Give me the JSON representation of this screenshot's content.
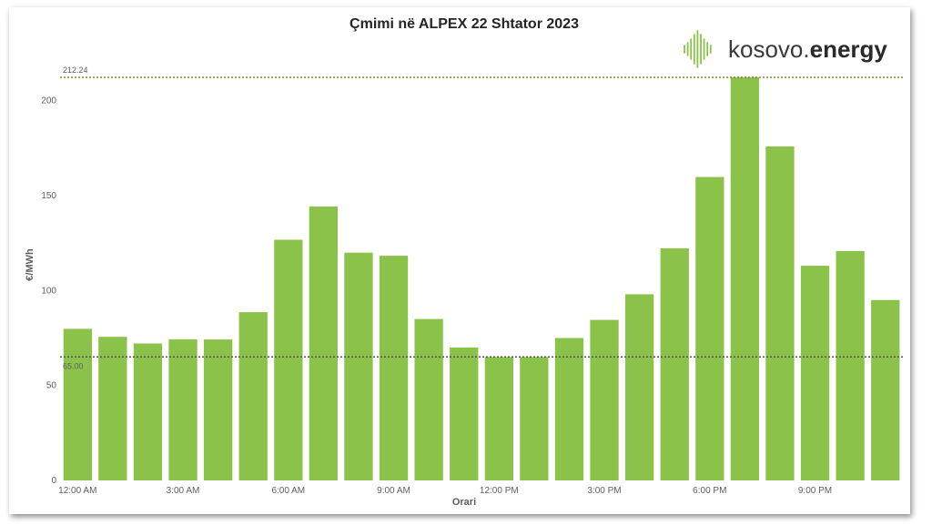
{
  "chart_data": {
    "type": "bar",
    "title": "Çmimi në ALPEX 22 Shtator 2023",
    "xlabel": "Orari",
    "ylabel": "€/MWh",
    "ylim": [
      0,
      212.24
    ],
    "yticks": [
      0,
      50,
      100,
      150,
      200
    ],
    "x_tick_labels": [
      {
        "index": 0,
        "label": "12:00 AM"
      },
      {
        "index": 3,
        "label": "3:00 AM"
      },
      {
        "index": 6,
        "label": "6:00 AM"
      },
      {
        "index": 9,
        "label": "9:00 AM"
      },
      {
        "index": 12,
        "label": "12:00 PM"
      },
      {
        "index": 15,
        "label": "3:00 PM"
      },
      {
        "index": 18,
        "label": "6:00 PM"
      },
      {
        "index": 21,
        "label": "9:00 PM"
      }
    ],
    "values": [
      79.8,
      75.6,
      72.1,
      74.3,
      74.2,
      88.6,
      126.7,
      144.2,
      119.9,
      118.3,
      85.0,
      70.0,
      65.0,
      65.0,
      75.0,
      84.5,
      98.0,
      122.2,
      159.8,
      212.24,
      175.9,
      113.0,
      120.8,
      95.0
    ],
    "bar_color": "#8bc34a",
    "reference_lines": [
      {
        "label": "212.24",
        "value": 212.24,
        "color": "#7a8a3a"
      },
      {
        "label": "65.00",
        "value": 65.0,
        "color": "#555555"
      }
    ],
    "grid": false
  },
  "logo": {
    "text_plain": "kosovo.",
    "text_bold": "energy",
    "color": "#8bc34a"
  }
}
